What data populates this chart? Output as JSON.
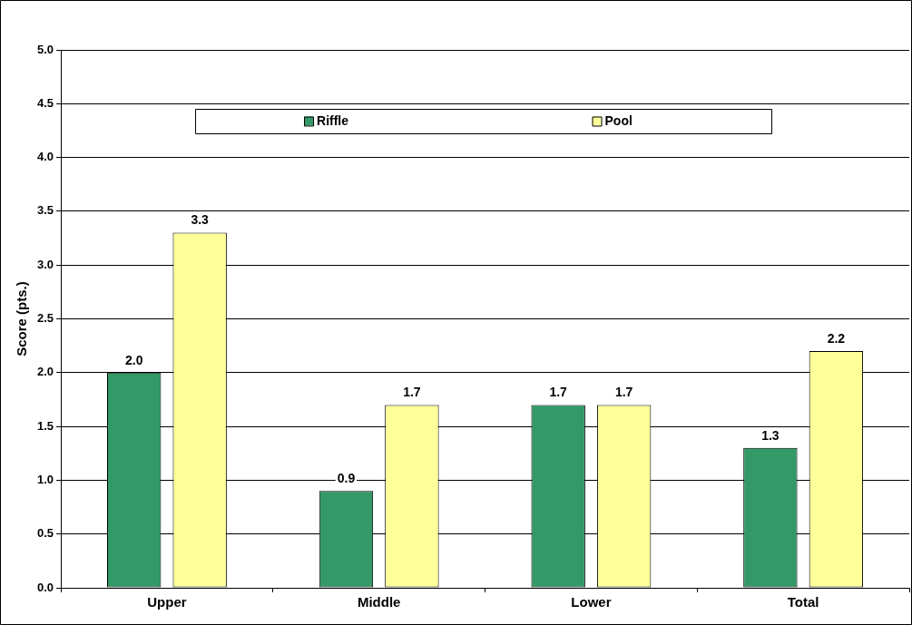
{
  "chart_data": {
    "type": "bar",
    "ylabel": "Score (pts.)",
    "categories": [
      "Upper",
      "Middle",
      "Lower",
      "Total"
    ],
    "series": [
      {
        "name": "Riffle",
        "color": "#339966",
        "values": [
          2.0,
          0.9,
          1.7,
          1.3
        ],
        "value_labels": [
          "2.0",
          "0.9",
          "1.7",
          "1.3"
        ]
      },
      {
        "name": "Pool",
        "color": "#ffff99",
        "values": [
          3.3,
          1.7,
          1.7,
          2.2
        ],
        "value_labels": [
          "3.3",
          "1.7",
          "1.7",
          "2.2"
        ]
      }
    ],
    "ylim": [
      0,
      5
    ],
    "yticks": [
      {
        "value": 0,
        "label": "0.0"
      },
      {
        "value": 0.5,
        "label": "0.5"
      },
      {
        "value": 1,
        "label": "1.0"
      },
      {
        "value": 1.5,
        "label": "1.5"
      },
      {
        "value": 2,
        "label": "2.0"
      },
      {
        "value": 2.5,
        "label": "2.5"
      },
      {
        "value": 3,
        "label": "3.0"
      },
      {
        "value": 3.5,
        "label": "3.5"
      },
      {
        "value": 4,
        "label": "4.0"
      },
      {
        "value": 4.5,
        "label": "4.5"
      },
      {
        "value": 5,
        "label": "5.0"
      }
    ],
    "grid": "y",
    "legend": "top"
  }
}
